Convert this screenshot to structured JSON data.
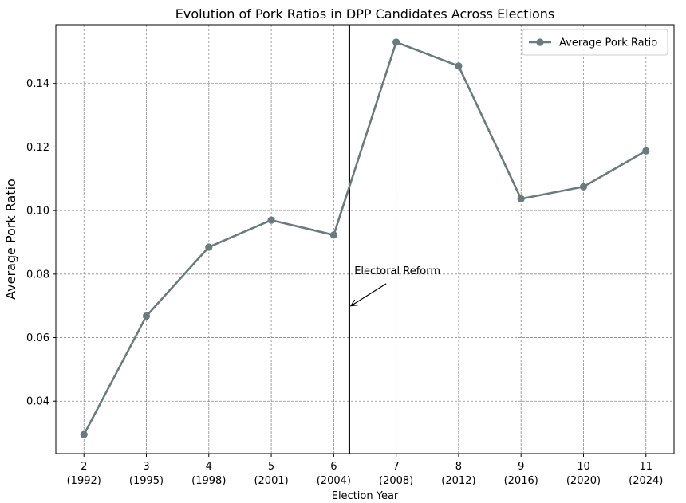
{
  "chart_data": {
    "type": "line",
    "title": "Evolution of Pork Ratios in DPP Candidates Across Elections",
    "xlabel": "Election Year",
    "ylabel": "Average Pork Ratio",
    "categories": [
      [
        "2",
        "(1992)"
      ],
      [
        "3",
        "(1995)"
      ],
      [
        "4",
        "(1998)"
      ],
      [
        "5",
        "(2001)"
      ],
      [
        "6",
        "(2004)"
      ],
      [
        "7",
        "(2008)"
      ],
      [
        "8",
        "(2012)"
      ],
      [
        "9",
        "(2016)"
      ],
      [
        "10",
        "(2020)"
      ],
      [
        "11",
        "(2024)"
      ]
    ],
    "x": [
      2,
      3,
      4,
      5,
      6,
      7,
      8,
      9,
      10,
      11
    ],
    "xlim": [
      1.55,
      11.45
    ],
    "ylim": [
      0.0235,
      0.1585
    ],
    "yticks": [
      0.04,
      0.06,
      0.08,
      0.1,
      0.12,
      0.14
    ],
    "ytick_labels": [
      "0.04",
      "0.06",
      "0.08",
      "0.10",
      "0.12",
      "0.14"
    ],
    "grid": true,
    "series": [
      {
        "name": "Average Pork Ratio",
        "color": "#6b7b7b",
        "marker": "circle",
        "values": [
          0.0295,
          0.0668,
          0.0885,
          0.097,
          0.0923,
          0.153,
          0.1455,
          0.1037,
          0.1075,
          0.1188
        ]
      }
    ],
    "legend": {
      "position": "top-right",
      "entries": [
        "Average Pork Ratio"
      ]
    },
    "vertical_line": {
      "x": 6.25,
      "color": "#000000"
    },
    "annotation": {
      "text": "Electoral Reform",
      "point": {
        "x": 6.25,
        "y": 0.07
      },
      "text_anchor": {
        "x": 6.33,
        "y": 0.08
      }
    }
  }
}
